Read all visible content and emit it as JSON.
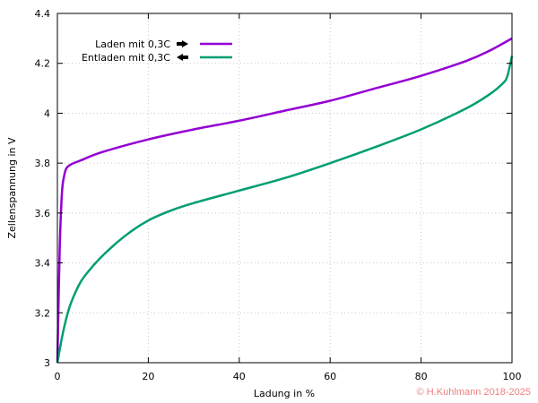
{
  "chart_data": {
    "type": "line",
    "title": "",
    "xlabel": "Ladung in %",
    "ylabel": "Zellenspannung in V",
    "xlim": [
      0,
      100
    ],
    "ylim": [
      3.0,
      4.4
    ],
    "xticks": [
      "0",
      "20",
      "40",
      "60",
      "80",
      "100"
    ],
    "yticks": [
      "3",
      "3.2",
      "3.4",
      "3.6",
      "3.8",
      "4",
      "4.2",
      "4.4"
    ],
    "grid": true,
    "legend_position": "top-left",
    "series": [
      {
        "name": "Laden mit 0,3C",
        "arrow": "right",
        "color": "#9400d3",
        "x": [
          0,
          0.5,
          1,
          1.5,
          2,
          3,
          5,
          10,
          20,
          30,
          40,
          50,
          60,
          70,
          80,
          90,
          95,
          100
        ],
        "y": [
          3.0,
          3.45,
          3.68,
          3.75,
          3.78,
          3.795,
          3.81,
          3.845,
          3.895,
          3.935,
          3.97,
          4.01,
          4.05,
          4.1,
          4.15,
          4.21,
          4.25,
          4.3
        ]
      },
      {
        "name": "Entladen mit 0,3C",
        "arrow": "left",
        "color": "#009e73",
        "x": [
          0,
          1,
          2,
          3,
          5,
          7,
          10,
          15,
          20,
          25,
          30,
          40,
          50,
          60,
          70,
          80,
          90,
          95,
          98,
          99,
          100
        ],
        "y": [
          3.0,
          3.1,
          3.18,
          3.24,
          3.32,
          3.37,
          3.43,
          3.51,
          3.57,
          3.61,
          3.64,
          3.69,
          3.74,
          3.8,
          3.865,
          3.935,
          4.02,
          4.075,
          4.12,
          4.15,
          4.23
        ]
      }
    ]
  },
  "copyright": "© H.Kuhlmann 2018-2025"
}
